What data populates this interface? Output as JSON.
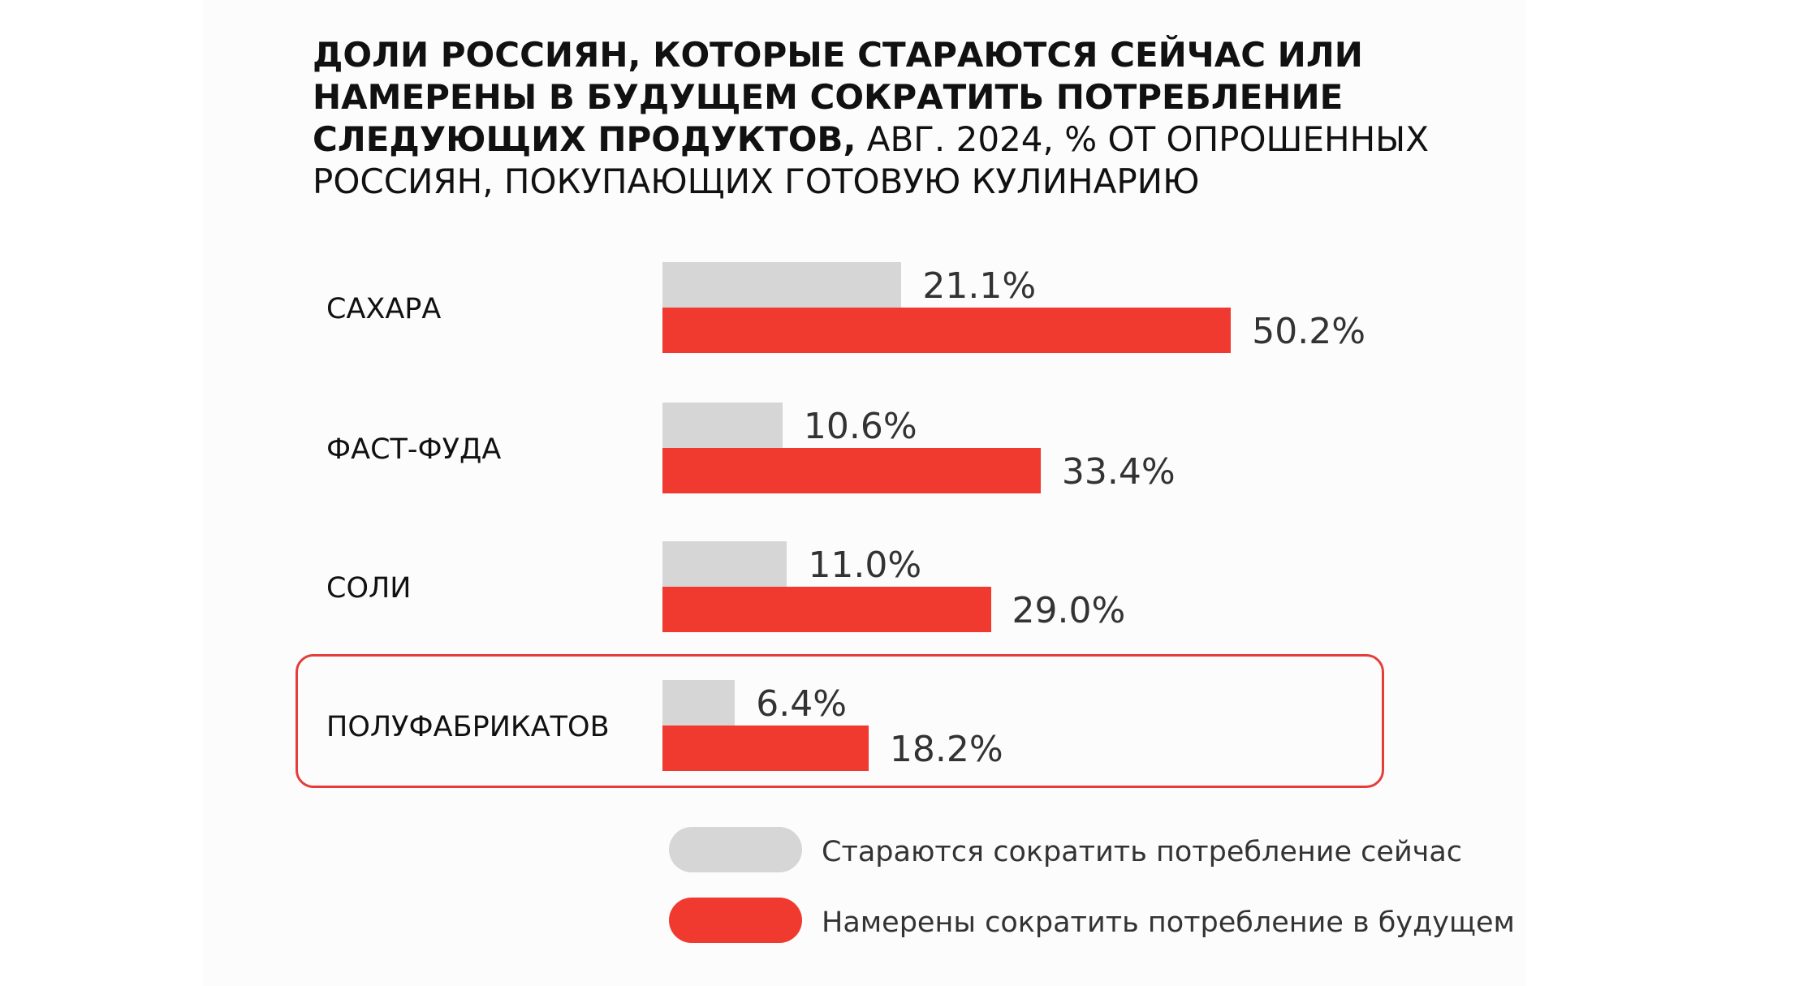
{
  "title": {
    "bold": "ДОЛИ РОССИЯН, КОТОРЫЕ СТАРАЮТСЯ СЕЙЧАС ИЛИ НАМЕРЕНЫ В БУДУЩЕМ СОКРАТИТЬ ПОТРЕБЛЕНИЕ СЛЕДУЮЩИХ ПРОДУКТОВ,",
    "normal": " АВГ. 2024, % ОТ ОПРОШЕННЫХ РОССИЯН, ПОКУПАЮЩИХ ГОТОВУЮ КУЛИНАРИЮ"
  },
  "colors": {
    "now": "#d6d6d6",
    "future": "#f0392f",
    "highlight": "#e43d3a"
  },
  "chart_data": {
    "type": "bar",
    "orientation": "horizontal",
    "categories": [
      "САХАРА",
      "ФАСТ-ФУДА",
      "СОЛИ",
      "ПОЛУФАБРИКАТОВ"
    ],
    "series": [
      {
        "name": "Стараются сократить потребление сейчас",
        "values": [
          21.1,
          10.6,
          11.0,
          6.4
        ],
        "labels": [
          "21.1%",
          "10.6%",
          "11.0%",
          "6.4%"
        ]
      },
      {
        "name": "Намерены сократить потребление в будущем",
        "values": [
          50.2,
          33.4,
          29.0,
          18.2
        ],
        "labels": [
          "50.2%",
          "33.4%",
          "29.0%",
          "18.2%"
        ]
      }
    ],
    "highlighted_category": "ПОЛУФАБРИКАТОВ",
    "legend_position": "bottom",
    "grid": false
  },
  "legend": {
    "now": "Стараются сократить потребление сейчас",
    "future": "Намерены сократить потребление в будущем"
  }
}
